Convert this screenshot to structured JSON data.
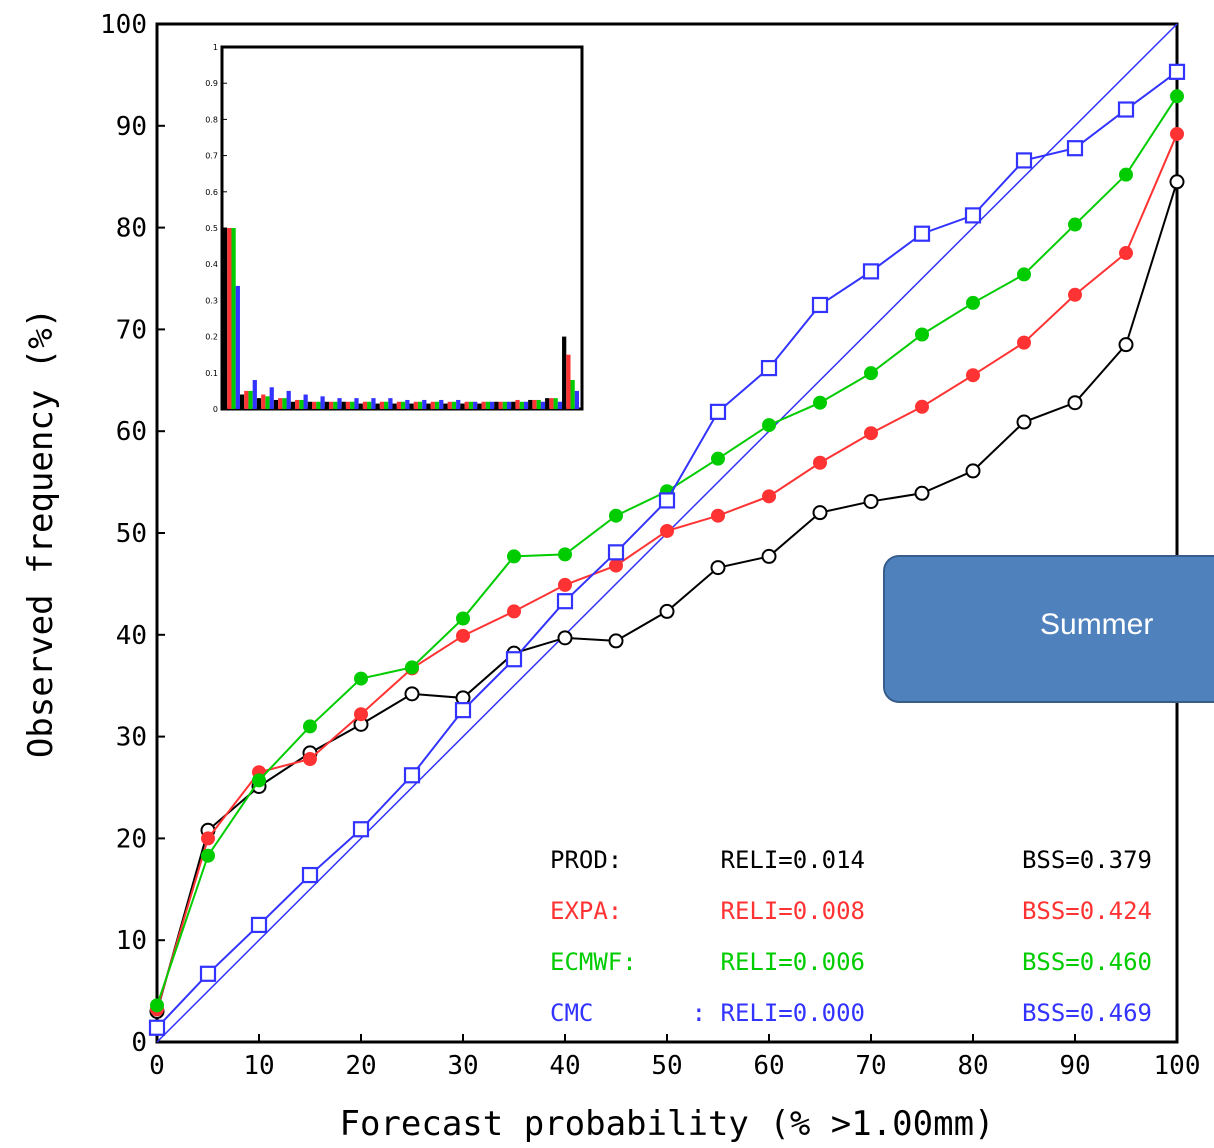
{
  "chart_data": {
    "type": "line",
    "title": "",
    "xlabel": "Forecast probability (% >1.00mm)",
    "ylabel": "Observed frequency (%)",
    "xlim": [
      0,
      100
    ],
    "ylim": [
      0,
      100
    ],
    "x_ticks": [
      "0",
      "10",
      "20",
      "30",
      "40",
      "50",
      "60",
      "70",
      "80",
      "90",
      "100"
    ],
    "y_ticks": [
      "0",
      "10",
      "20",
      "30",
      "40",
      "50",
      "60",
      "70",
      "80",
      "90",
      "100"
    ],
    "reference_line": "diagonal",
    "series": [
      {
        "name": "PROD",
        "color": "#000000",
        "marker": "open-circle",
        "x": [
          0,
          5,
          10,
          15,
          20,
          25,
          30,
          35,
          40,
          45,
          50,
          55,
          60,
          65,
          70,
          75,
          80,
          85,
          90,
          95,
          100
        ],
        "y": [
          3,
          20.8,
          25.1,
          28.4,
          31.2,
          34.2,
          33.8,
          38.2,
          39.7,
          39.4,
          42.3,
          46.6,
          47.7,
          52.0,
          53.1,
          53.9,
          56.1,
          60.9,
          62.8,
          68.5,
          84.5
        ]
      },
      {
        "name": "EXPA",
        "color": "#ff3333",
        "marker": "filled-circle",
        "x": [
          0,
          5,
          10,
          15,
          20,
          25,
          30,
          35,
          40,
          45,
          50,
          55,
          60,
          65,
          70,
          75,
          80,
          85,
          90,
          95,
          100
        ],
        "y": [
          3.2,
          20.0,
          26.5,
          27.8,
          32.2,
          36.7,
          39.9,
          42.3,
          44.9,
          46.8,
          50.2,
          51.7,
          53.6,
          56.9,
          59.8,
          62.4,
          65.5,
          68.7,
          73.4,
          77.5,
          89.2
        ]
      },
      {
        "name": "ECMWF",
        "color": "#00cc00",
        "marker": "filled-circle",
        "x": [
          0,
          5,
          10,
          15,
          20,
          25,
          30,
          35,
          40,
          45,
          50,
          55,
          60,
          65,
          70,
          75,
          80,
          85,
          90,
          95,
          100
        ],
        "y": [
          3.6,
          18.3,
          25.7,
          31.0,
          35.7,
          36.8,
          41.6,
          47.7,
          47.9,
          51.7,
          54.1,
          57.3,
          60.6,
          62.8,
          65.7,
          69.5,
          72.6,
          75.4,
          80.3,
          85.2,
          92.9
        ]
      },
      {
        "name": "CMC",
        "color": "#3333ff",
        "marker": "open-square",
        "x": [
          0,
          5,
          10,
          15,
          20,
          25,
          30,
          35,
          40,
          45,
          50,
          55,
          60,
          65,
          70,
          75,
          80,
          85,
          90,
          95,
          100
        ],
        "y": [
          1.4,
          6.7,
          11.5,
          16.4,
          20.9,
          26.2,
          32.6,
          37.6,
          43.3,
          48.1,
          53.2,
          61.9,
          66.2,
          72.4,
          75.7,
          79.4,
          81.2,
          86.6,
          87.8,
          91.6,
          95.3
        ]
      }
    ],
    "stats": [
      {
        "name": "PROD:",
        "reli": "RELI=0.014",
        "bss": "BSS=0.379",
        "color": "#000000"
      },
      {
        "name": "EXPA:",
        "reli": "RELI=0.008",
        "bss": "BSS=0.424",
        "color": "#ff3333"
      },
      {
        "name": "ECMWF:",
        "reli": "RELI=0.006",
        "bss": "BSS=0.460",
        "color": "#00cc00"
      },
      {
        "name": "CMC",
        "reli": ": RELI=0.000",
        "bss": "BSS=0.469",
        "color": "#3333ff"
      }
    ],
    "inset": {
      "type": "bar",
      "ylim": [
        0,
        1
      ],
      "y_ticks": [
        "0",
        "0.1",
        "0.2",
        "0.3",
        "0.4",
        "0.5",
        "0.6",
        "0.7",
        "0.8",
        "0.9",
        "1"
      ],
      "bins": 21,
      "series_values": {
        "PROD": [
          0.5,
          0.04,
          0.03,
          0.025,
          0.02,
          0.02,
          0.02,
          0.02,
          0.015,
          0.015,
          0.015,
          0.015,
          0.015,
          0.015,
          0.015,
          0.015,
          0.02,
          0.02,
          0.025,
          0.03,
          0.2
        ],
        "EXPA": [
          0.5,
          0.05,
          0.04,
          0.03,
          0.025,
          0.02,
          0.02,
          0.02,
          0.02,
          0.02,
          0.02,
          0.02,
          0.02,
          0.02,
          0.02,
          0.02,
          0.02,
          0.025,
          0.025,
          0.03,
          0.15
        ],
        "ECMWF": [
          0.5,
          0.05,
          0.035,
          0.03,
          0.025,
          0.02,
          0.02,
          0.02,
          0.02,
          0.02,
          0.02,
          0.02,
          0.02,
          0.02,
          0.02,
          0.02,
          0.02,
          0.02,
          0.025,
          0.03,
          0.08
        ],
        "CMC": [
          0.34,
          0.08,
          0.06,
          0.05,
          0.04,
          0.035,
          0.03,
          0.03,
          0.03,
          0.03,
          0.025,
          0.025,
          0.025,
          0.025,
          0.02,
          0.02,
          0.02,
          0.02,
          0.02,
          0.02,
          0.05
        ]
      }
    }
  },
  "callout": {
    "label": "Summer"
  }
}
